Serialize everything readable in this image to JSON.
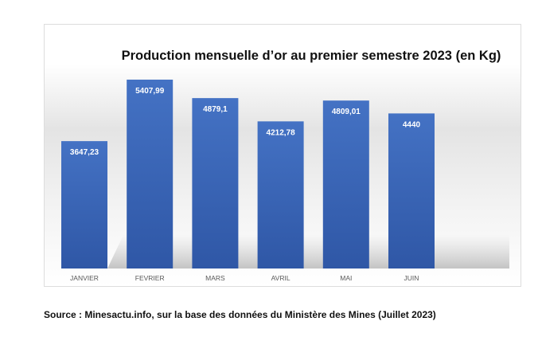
{
  "chart_data": {
    "type": "bar",
    "title": "Production mensuelle d’or au premier semestre 2023 (en Kg)",
    "categories": [
      "JANVIER",
      "FEVRIER",
      "MARS",
      "AVRIL",
      "MAI",
      "JUIN"
    ],
    "values": [
      3647.23,
      5407.99,
      4879.1,
      4212.78,
      4809.01,
      4440
    ],
    "data_labels": [
      "3647,23",
      "5407,99",
      "4879,1",
      "4212,78",
      "4809,01",
      "4440"
    ],
    "xlabel": "",
    "ylabel": "",
    "ylim": [
      0,
      6000
    ],
    "grid": false,
    "legend": "none",
    "colors": {
      "bar_top": "#4472c4",
      "bar_bottom": "#2f55a4",
      "label": "#ffffff",
      "tick": "#595959"
    }
  },
  "source": "Source : Minesactu.info, sur la base des données du Ministère des Mines (Juillet 2023)"
}
